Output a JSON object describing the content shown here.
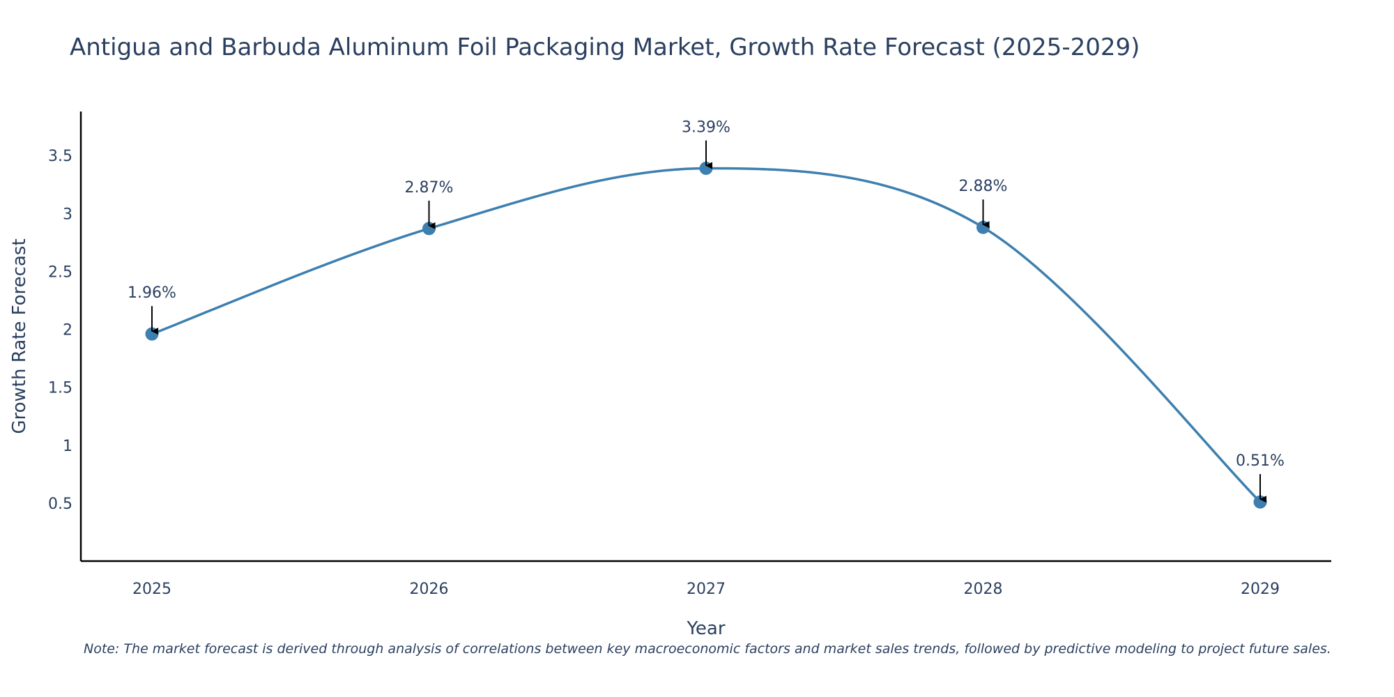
{
  "chart_data": {
    "type": "line",
    "title": "Antigua and Barbuda Aluminum Foil Packaging Market, Growth Rate Forecast (2025-2029)",
    "xlabel": "Year",
    "ylabel": "Growth Rate Forecast",
    "categories": [
      "2025",
      "2026",
      "2027",
      "2028",
      "2029"
    ],
    "series": [
      {
        "name": "Growth Rate Forecast",
        "values": [
          1.96,
          2.87,
          3.39,
          2.88,
          0.51
        ],
        "labels": [
          "1.96%",
          "2.87%",
          "3.39%",
          "2.88%",
          "0.51%"
        ],
        "color": "#3d7faf"
      }
    ],
    "yticks": [
      0.5,
      1,
      1.5,
      2,
      2.5,
      3,
      3.5
    ],
    "ytick_labels": [
      "0.5",
      "1",
      "1.5",
      "2",
      "2.5",
      "3",
      "3.5"
    ],
    "ylim": [
      0,
      3.88
    ],
    "grid": false,
    "legend": "none",
    "annotations": "arrow labels above each point"
  },
  "note": "Note: The market forecast is derived through analysis of correlations between key macroeconomic factors and market sales trends, followed by predictive modeling to project future sales."
}
